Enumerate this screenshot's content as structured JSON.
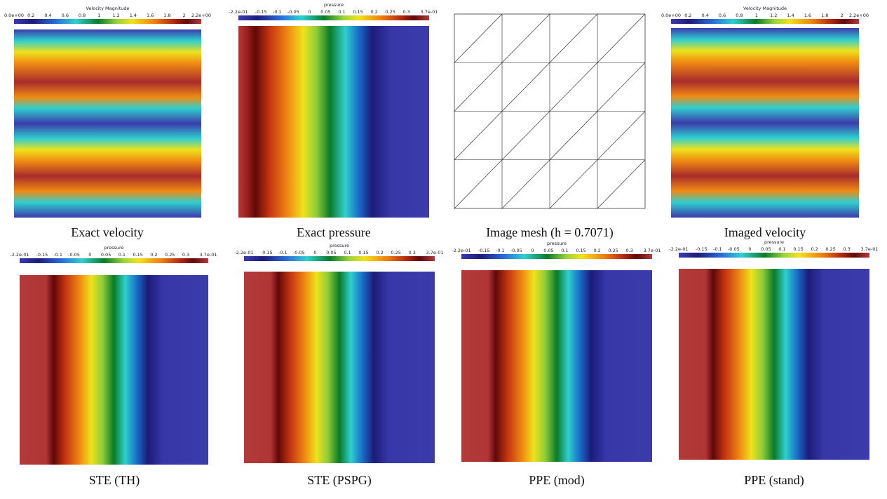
{
  "panels": [
    {
      "caption": "Exact velocity",
      "colorbar": {
        "title": "Velocity Magnitude",
        "ticks": [
          "0.0e+00",
          "0.2",
          "0.4",
          "0.6",
          "0.8",
          "1",
          "1.2",
          "1.4",
          "1.6",
          "1.8",
          "2",
          "2.2e+00"
        ]
      }
    },
    {
      "caption": "Exact pressure",
      "colorbar": {
        "title": "pressure",
        "ticks": [
          "-2.2e-01",
          "-0.15",
          "-0.1",
          "-0.05",
          "0",
          "0.05",
          "0.1",
          "0.15",
          "0.2",
          "0.25",
          "0.3",
          "3.7e-01"
        ]
      }
    },
    {
      "caption": "Image mesh (h = 0.7071)"
    },
    {
      "caption": "Imaged velocity",
      "colorbar": {
        "title": "Velocity Magnitude",
        "ticks": [
          "0.0e+00",
          "0.2",
          "0.4",
          "0.6",
          "0.8",
          "1",
          "1.2",
          "1.4",
          "1.6",
          "1.8",
          "2",
          "2.2e+00"
        ]
      }
    },
    {
      "caption": "STE (TH)",
      "colorbar": {
        "title": "pressure",
        "ticks": [
          "-2.2e-01",
          "-0.15",
          "-0.1",
          "-0.05",
          "0",
          "0.05",
          "0.1",
          "0.15",
          "0.2",
          "0.25",
          "0.3",
          "3.7e-01"
        ]
      }
    },
    {
      "caption": "STE (PSPG)",
      "colorbar": {
        "title": "pressure",
        "ticks": [
          "-2.2e-01",
          "-0.15",
          "-0.1",
          "-0.05",
          "0",
          "0.05",
          "0.1",
          "0.15",
          "0.2",
          "0.25",
          "0.3",
          "3.7e-01"
        ]
      }
    },
    {
      "caption": "PPE (mod)",
      "colorbar": {
        "title": "pressure",
        "ticks": [
          "-2.2e-01",
          "-0.15",
          "-0.1",
          "-0.05",
          "0",
          "0.05",
          "0.1",
          "0.15",
          "0.2",
          "0.25",
          "0.3",
          "3.7e-01"
        ]
      }
    },
    {
      "caption": "PPE (stand)",
      "colorbar": {
        "title": "pressure",
        "ticks": [
          "-2.2e-01",
          "-0.15",
          "-0.1",
          "-0.05",
          "0",
          "0.05",
          "0.1",
          "0.15",
          "0.2",
          "0.25",
          "0.3",
          "3.7e-01"
        ]
      }
    }
  ]
}
